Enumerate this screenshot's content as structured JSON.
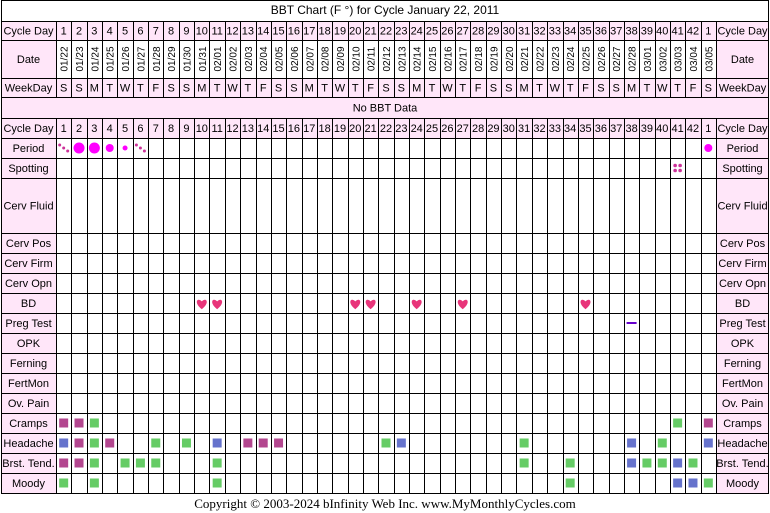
{
  "title": "BBT Chart (F °) for Cycle January 22, 2011",
  "no_bbt_text": "No BBT Data",
  "copyright": "Copyright © 2003-2024 bInfinity Web Inc.     www.MyMonthlyCycles.com",
  "colors": {
    "border": "#000000",
    "label_bg": "#ffe6f9",
    "period": "#ff00ff",
    "spotting": "#cc3399",
    "heart": "#e8357a",
    "preg_test": "#6600cc",
    "cramps_bar": "#b3478f",
    "severity_mild": "#66cc66",
    "severity_moderate": "#b3478f",
    "severity_blue": "#6673cc"
  },
  "chart_data": {
    "type": "table",
    "cycle_days": [
      "1",
      "2",
      "3",
      "4",
      "5",
      "6",
      "7",
      "8",
      "9",
      "10",
      "11",
      "12",
      "13",
      "14",
      "15",
      "16",
      "17",
      "18",
      "19",
      "20",
      "21",
      "22",
      "23",
      "24",
      "25",
      "26",
      "27",
      "28",
      "29",
      "30",
      "31",
      "32",
      "33",
      "34",
      "35",
      "36",
      "37",
      "38",
      "39",
      "40",
      "41",
      "42",
      "1"
    ],
    "dates": [
      "01/22",
      "01/23",
      "01/24",
      "01/25",
      "01/26",
      "01/27",
      "01/28",
      "01/29",
      "01/30",
      "01/31",
      "02/01",
      "02/02",
      "02/03",
      "02/04",
      "02/05",
      "02/06",
      "02/07",
      "02/08",
      "02/09",
      "02/10",
      "02/11",
      "02/12",
      "02/13",
      "02/14",
      "02/15",
      "02/16",
      "02/17",
      "02/18",
      "02/19",
      "02/20",
      "02/21",
      "02/22",
      "02/23",
      "02/24",
      "02/25",
      "02/26",
      "02/27",
      "02/28",
      "03/01",
      "03/02",
      "03/03",
      "03/04",
      "03/05"
    ],
    "weekdays": [
      "S",
      "S",
      "M",
      "T",
      "W",
      "T",
      "F",
      "S",
      "S",
      "M",
      "T",
      "W",
      "T",
      "F",
      "S",
      "S",
      "M",
      "T",
      "W",
      "T",
      "F",
      "S",
      "S",
      "M",
      "T",
      "W",
      "T",
      "F",
      "S",
      "S",
      "M",
      "T",
      "W",
      "T",
      "F",
      "S",
      "S",
      "M",
      "T",
      "W",
      "T",
      "F",
      "S"
    ],
    "row_labels": {
      "cycle_day": "Cycle Day",
      "date": "Date",
      "weekday": "WeekDay",
      "period": "Period",
      "spotting": "Spotting",
      "cerv_fluid": "Cerv Fluid",
      "cerv_pos": "Cerv Pos",
      "cerv_firm": "Cerv Firm",
      "cerv_opn": "Cerv Opn",
      "bd": "BD",
      "preg_test": "Preg Test",
      "opk": "OPK",
      "ferning": "Ferning",
      "fertmon": "FertMon",
      "ov_pain": "Ov. Pain",
      "cramps": "Cramps",
      "headache": "Headache",
      "brst_tend": "Brst. Tend.",
      "moody": "Moody"
    },
    "period": [
      {
        "day_index": 0,
        "flow": "spotting-dots"
      },
      {
        "day_index": 1,
        "flow": "heavy"
      },
      {
        "day_index": 2,
        "flow": "heavy"
      },
      {
        "day_index": 3,
        "flow": "medium"
      },
      {
        "day_index": 4,
        "flow": "light"
      },
      {
        "day_index": 5,
        "flow": "spotting-dots"
      },
      {
        "day_index": 42,
        "flow": "medium"
      }
    ],
    "spotting": [
      40
    ],
    "bd": [
      9,
      10,
      19,
      20,
      23,
      26,
      34
    ],
    "preg_test": [
      {
        "day_index": 37,
        "result": "negative"
      }
    ],
    "symptoms": {
      "cramps": [
        {
          "day_index": 0,
          "level": "moderate"
        },
        {
          "day_index": 1,
          "level": "moderate"
        },
        {
          "day_index": 2,
          "level": "mild"
        },
        {
          "day_index": 40,
          "level": "mild"
        },
        {
          "day_index": 42,
          "level": "moderate"
        }
      ],
      "headache": [
        {
          "day_index": 0,
          "level": "blue"
        },
        {
          "day_index": 1,
          "level": "moderate"
        },
        {
          "day_index": 2,
          "level": "mild"
        },
        {
          "day_index": 3,
          "level": "moderate"
        },
        {
          "day_index": 6,
          "level": "mild"
        },
        {
          "day_index": 8,
          "level": "mild"
        },
        {
          "day_index": 10,
          "level": "blue"
        },
        {
          "day_index": 12,
          "level": "moderate"
        },
        {
          "day_index": 13,
          "level": "moderate"
        },
        {
          "day_index": 14,
          "level": "moderate"
        },
        {
          "day_index": 21,
          "level": "mild"
        },
        {
          "day_index": 22,
          "level": "blue"
        },
        {
          "day_index": 30,
          "level": "mild"
        },
        {
          "day_index": 37,
          "level": "blue"
        },
        {
          "day_index": 39,
          "level": "mild"
        },
        {
          "day_index": 42,
          "level": "blue"
        }
      ],
      "brst_tend": [
        {
          "day_index": 0,
          "level": "moderate"
        },
        {
          "day_index": 1,
          "level": "moderate"
        },
        {
          "day_index": 2,
          "level": "mild"
        },
        {
          "day_index": 4,
          "level": "mild"
        },
        {
          "day_index": 5,
          "level": "mild"
        },
        {
          "day_index": 6,
          "level": "mild"
        },
        {
          "day_index": 10,
          "level": "mild"
        },
        {
          "day_index": 30,
          "level": "mild"
        },
        {
          "day_index": 33,
          "level": "mild"
        },
        {
          "day_index": 37,
          "level": "blue"
        },
        {
          "day_index": 38,
          "level": "mild"
        },
        {
          "day_index": 39,
          "level": "mild"
        },
        {
          "day_index": 40,
          "level": "blue"
        },
        {
          "day_index": 41,
          "level": "mild"
        }
      ],
      "moody": [
        {
          "day_index": 0,
          "level": "mild"
        },
        {
          "day_index": 2,
          "level": "mild"
        },
        {
          "day_index": 10,
          "level": "mild"
        },
        {
          "day_index": 33,
          "level": "mild"
        },
        {
          "day_index": 40,
          "level": "blue"
        },
        {
          "day_index": 41,
          "level": "blue"
        },
        {
          "day_index": 42,
          "level": "mild"
        }
      ]
    }
  }
}
